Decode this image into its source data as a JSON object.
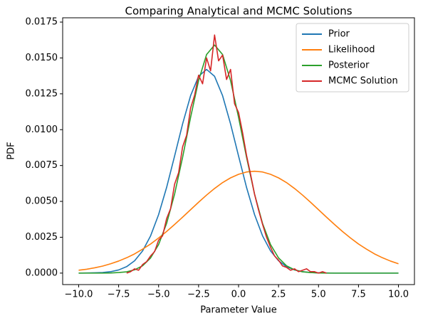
{
  "chart_data": {
    "type": "line",
    "title": "Comparing Analytical and MCMC Solutions",
    "x_label": "Parameter Value",
    "y_label": "PDF",
    "xlim": [
      -11,
      11
    ],
    "ylim": [
      -0.0008,
      0.0178
    ],
    "xticks": [
      {
        "value": -10,
        "label": "−10.0"
      },
      {
        "value": -7.5,
        "label": "−7.5"
      },
      {
        "value": -5,
        "label": "−5.0"
      },
      {
        "value": -2.5,
        "label": "−2.5"
      },
      {
        "value": 0,
        "label": "0.0"
      },
      {
        "value": 2.5,
        "label": "2.5"
      },
      {
        "value": 5,
        "label": "5.0"
      },
      {
        "value": 7.5,
        "label": "7.5"
      },
      {
        "value": 10,
        "label": "10.0"
      }
    ],
    "yticks": [
      {
        "value": 0,
        "label": "0.0000"
      },
      {
        "value": 0.0025,
        "label": "0.0025"
      },
      {
        "value": 0.005,
        "label": "0.0050"
      },
      {
        "value": 0.0075,
        "label": "0.0075"
      },
      {
        "value": 0.01,
        "label": "0.0100"
      },
      {
        "value": 0.0125,
        "label": "0.0125"
      },
      {
        "value": 0.015,
        "label": "0.0150"
      },
      {
        "value": 0.0175,
        "label": "0.0175"
      }
    ],
    "grid": false,
    "legend": "upper right",
    "series": [
      {
        "name": "Prior",
        "color": "#1f77b4",
        "x": [
          -10,
          -9.5,
          -9,
          -8.5,
          -8,
          -7.5,
          -7,
          -6.5,
          -6,
          -5.5,
          -5,
          -4.5,
          -4,
          -3.5,
          -3,
          -2.5,
          -2,
          -1.5,
          -1,
          -0.5,
          0,
          0.5,
          1,
          1.5,
          2,
          2.5,
          3,
          3.5,
          4,
          4.5,
          5,
          5.5,
          6,
          6.5,
          7,
          7.5,
          8,
          8.5,
          9,
          9.5,
          10
        ],
        "values": [
          0,
          1e-05,
          2e-05,
          4e-05,
          0.0001,
          0.00022,
          0.00045,
          0.00086,
          0.00155,
          0.0026,
          0.00408,
          0.00597,
          0.00816,
          0.0104,
          0.01237,
          0.01372,
          0.0142,
          0.01372,
          0.01237,
          0.0104,
          0.00816,
          0.00597,
          0.00408,
          0.0026,
          0.00155,
          0.00086,
          0.00045,
          0.00022,
          0.0001,
          4e-05,
          2e-05,
          1e-05,
          0,
          0,
          0,
          0,
          0,
          0,
          0,
          0,
          0
        ]
      },
      {
        "name": "Likelihood",
        "color": "#ff7f0e",
        "x": [
          -10,
          -9.5,
          -9,
          -8.5,
          -8,
          -7.5,
          -7,
          -6.5,
          -6,
          -5.5,
          -5,
          -4.5,
          -4,
          -3.5,
          -3,
          -2.5,
          -2,
          -1.5,
          -1,
          -0.5,
          0,
          0.5,
          1,
          1.5,
          2,
          2.5,
          3,
          3.5,
          4,
          4.5,
          5,
          5.5,
          6,
          6.5,
          7,
          7.5,
          8,
          8.5,
          9,
          9.5,
          10
        ],
        "values": [
          0.0002,
          0.00027,
          0.00037,
          0.00049,
          0.00065,
          0.00084,
          0.00107,
          0.00134,
          0.00167,
          0.00203,
          0.00245,
          0.0029,
          0.00339,
          0.0039,
          0.00442,
          0.00494,
          0.00544,
          0.0059,
          0.00631,
          0.00664,
          0.00689,
          0.00705,
          0.0071,
          0.00705,
          0.00689,
          0.00664,
          0.00631,
          0.0059,
          0.00544,
          0.00494,
          0.00442,
          0.0039,
          0.00339,
          0.0029,
          0.00245,
          0.00203,
          0.00167,
          0.00134,
          0.00107,
          0.00084,
          0.00065
        ]
      },
      {
        "name": "Posterior",
        "color": "#2ca02c",
        "x": [
          -10,
          -9.5,
          -9,
          -8.5,
          -8,
          -7.5,
          -7,
          -6.5,
          -6,
          -5.5,
          -5,
          -4.5,
          -4,
          -3.5,
          -3,
          -2.5,
          -2,
          -1.5,
          -1,
          -0.5,
          0,
          0.5,
          1,
          1.5,
          2,
          2.5,
          3,
          3.5,
          4,
          4.5,
          5,
          5.5,
          6,
          6.5,
          7,
          7.5,
          8,
          8.5,
          9,
          9.5,
          10
        ],
        "values": [
          0,
          0,
          0,
          0,
          1e-05,
          4e-05,
          9e-05,
          0.00023,
          0.00051,
          0.00106,
          0.00199,
          0.00346,
          0.00551,
          0.00807,
          0.01086,
          0.01342,
          0.01524,
          0.0159,
          0.01524,
          0.01342,
          0.01086,
          0.00807,
          0.00551,
          0.00346,
          0.00199,
          0.00106,
          0.00051,
          0.00023,
          9e-05,
          4e-05,
          1e-05,
          0,
          0,
          0,
          0,
          0,
          0,
          0,
          0,
          0,
          0
        ]
      },
      {
        "name": "MCMC Solution",
        "color": "#d62728",
        "x": [
          -7,
          -6.75,
          -6.5,
          -6.25,
          -6,
          -5.75,
          -5.5,
          -5.25,
          -5,
          -4.75,
          -4.5,
          -4.25,
          -4,
          -3.75,
          -3.5,
          -3.25,
          -3,
          -2.75,
          -2.5,
          -2.25,
          -2,
          -1.75,
          -1.5,
          -1.25,
          -1,
          -0.75,
          -0.5,
          -0.25,
          0,
          0.25,
          0.5,
          0.75,
          1,
          1.25,
          1.5,
          1.75,
          2,
          2.25,
          2.5,
          2.75,
          3,
          3.25,
          3.5,
          3.75,
          4,
          4.25,
          4.5,
          4.75,
          5,
          5.25,
          5.5
        ],
        "values": [
          0,
          0.0001,
          0.0003,
          0.0002,
          0.0006,
          0.0008,
          0.0012,
          0.0015,
          0.0023,
          0.0026,
          0.0038,
          0.0045,
          0.0062,
          0.007,
          0.0088,
          0.0096,
          0.0115,
          0.0124,
          0.0138,
          0.0132,
          0.015,
          0.0141,
          0.0166,
          0.0148,
          0.0152,
          0.0135,
          0.0142,
          0.0118,
          0.0112,
          0.0098,
          0.0082,
          0.0069,
          0.0055,
          0.0044,
          0.0034,
          0.0025,
          0.0018,
          0.0012,
          0.0009,
          0.0005,
          0.0004,
          0.0002,
          0.0003,
          0.0001,
          0.0002,
          0.0003,
          0.0001,
          0.0001,
          0,
          0.0001,
          0
        ]
      }
    ]
  }
}
